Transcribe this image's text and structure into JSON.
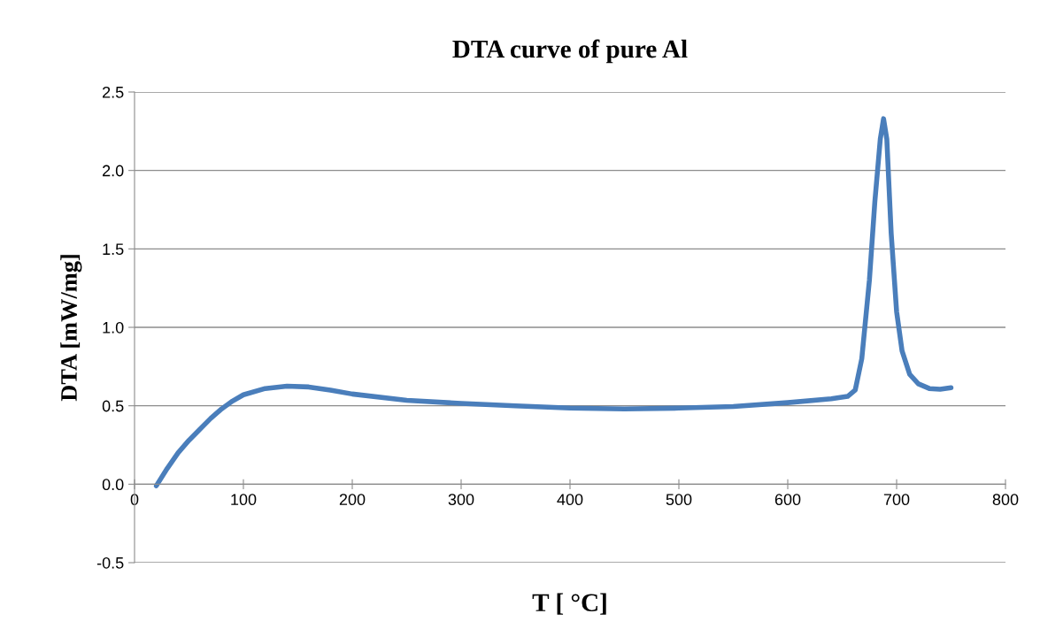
{
  "chart_data": {
    "type": "line",
    "title": "DTA curve of pure Al",
    "xlabel": "T [ °C]",
    "ylabel": "DTA [mW/mg]",
    "x": [
      20,
      30,
      40,
      50,
      60,
      70,
      80,
      90,
      100,
      120,
      140,
      160,
      180,
      200,
      250,
      300,
      350,
      400,
      450,
      500,
      550,
      600,
      640,
      655,
      662,
      668,
      675,
      680,
      685,
      688,
      691,
      695,
      700,
      705,
      712,
      720,
      730,
      740,
      750
    ],
    "series": [
      {
        "color": "#4a7ebb",
        "values": [
          -0.01,
          0.1,
          0.2,
          0.28,
          0.35,
          0.42,
          0.48,
          0.53,
          0.57,
          0.61,
          0.625,
          0.62,
          0.6,
          0.575,
          0.535,
          0.515,
          0.5,
          0.485,
          0.48,
          0.485,
          0.495,
          0.52,
          0.545,
          0.56,
          0.6,
          0.8,
          1.3,
          1.8,
          2.2,
          2.33,
          2.2,
          1.6,
          1.1,
          0.85,
          0.7,
          0.64,
          0.61,
          0.605,
          0.615
        ]
      }
    ],
    "xlim": [
      0,
      800
    ],
    "xticks": [
      0,
      100,
      200,
      300,
      400,
      500,
      600,
      700,
      800
    ],
    "ylim": [
      -0.5,
      2.5
    ],
    "yticks": [
      {
        "value": -0.5,
        "label": "-0.5"
      },
      {
        "value": 0,
        "label": "0.0"
      },
      {
        "value": 0.5,
        "label": "0.5"
      },
      {
        "value": 1.0,
        "label": "1.0"
      },
      {
        "value": 1.5,
        "label": "1.5"
      },
      {
        "value": 2.0,
        "label": "2.0"
      },
      {
        "value": 2.5,
        "label": "2.5"
      }
    ],
    "grid": "y",
    "marker": "none",
    "line_style": "solid"
  }
}
